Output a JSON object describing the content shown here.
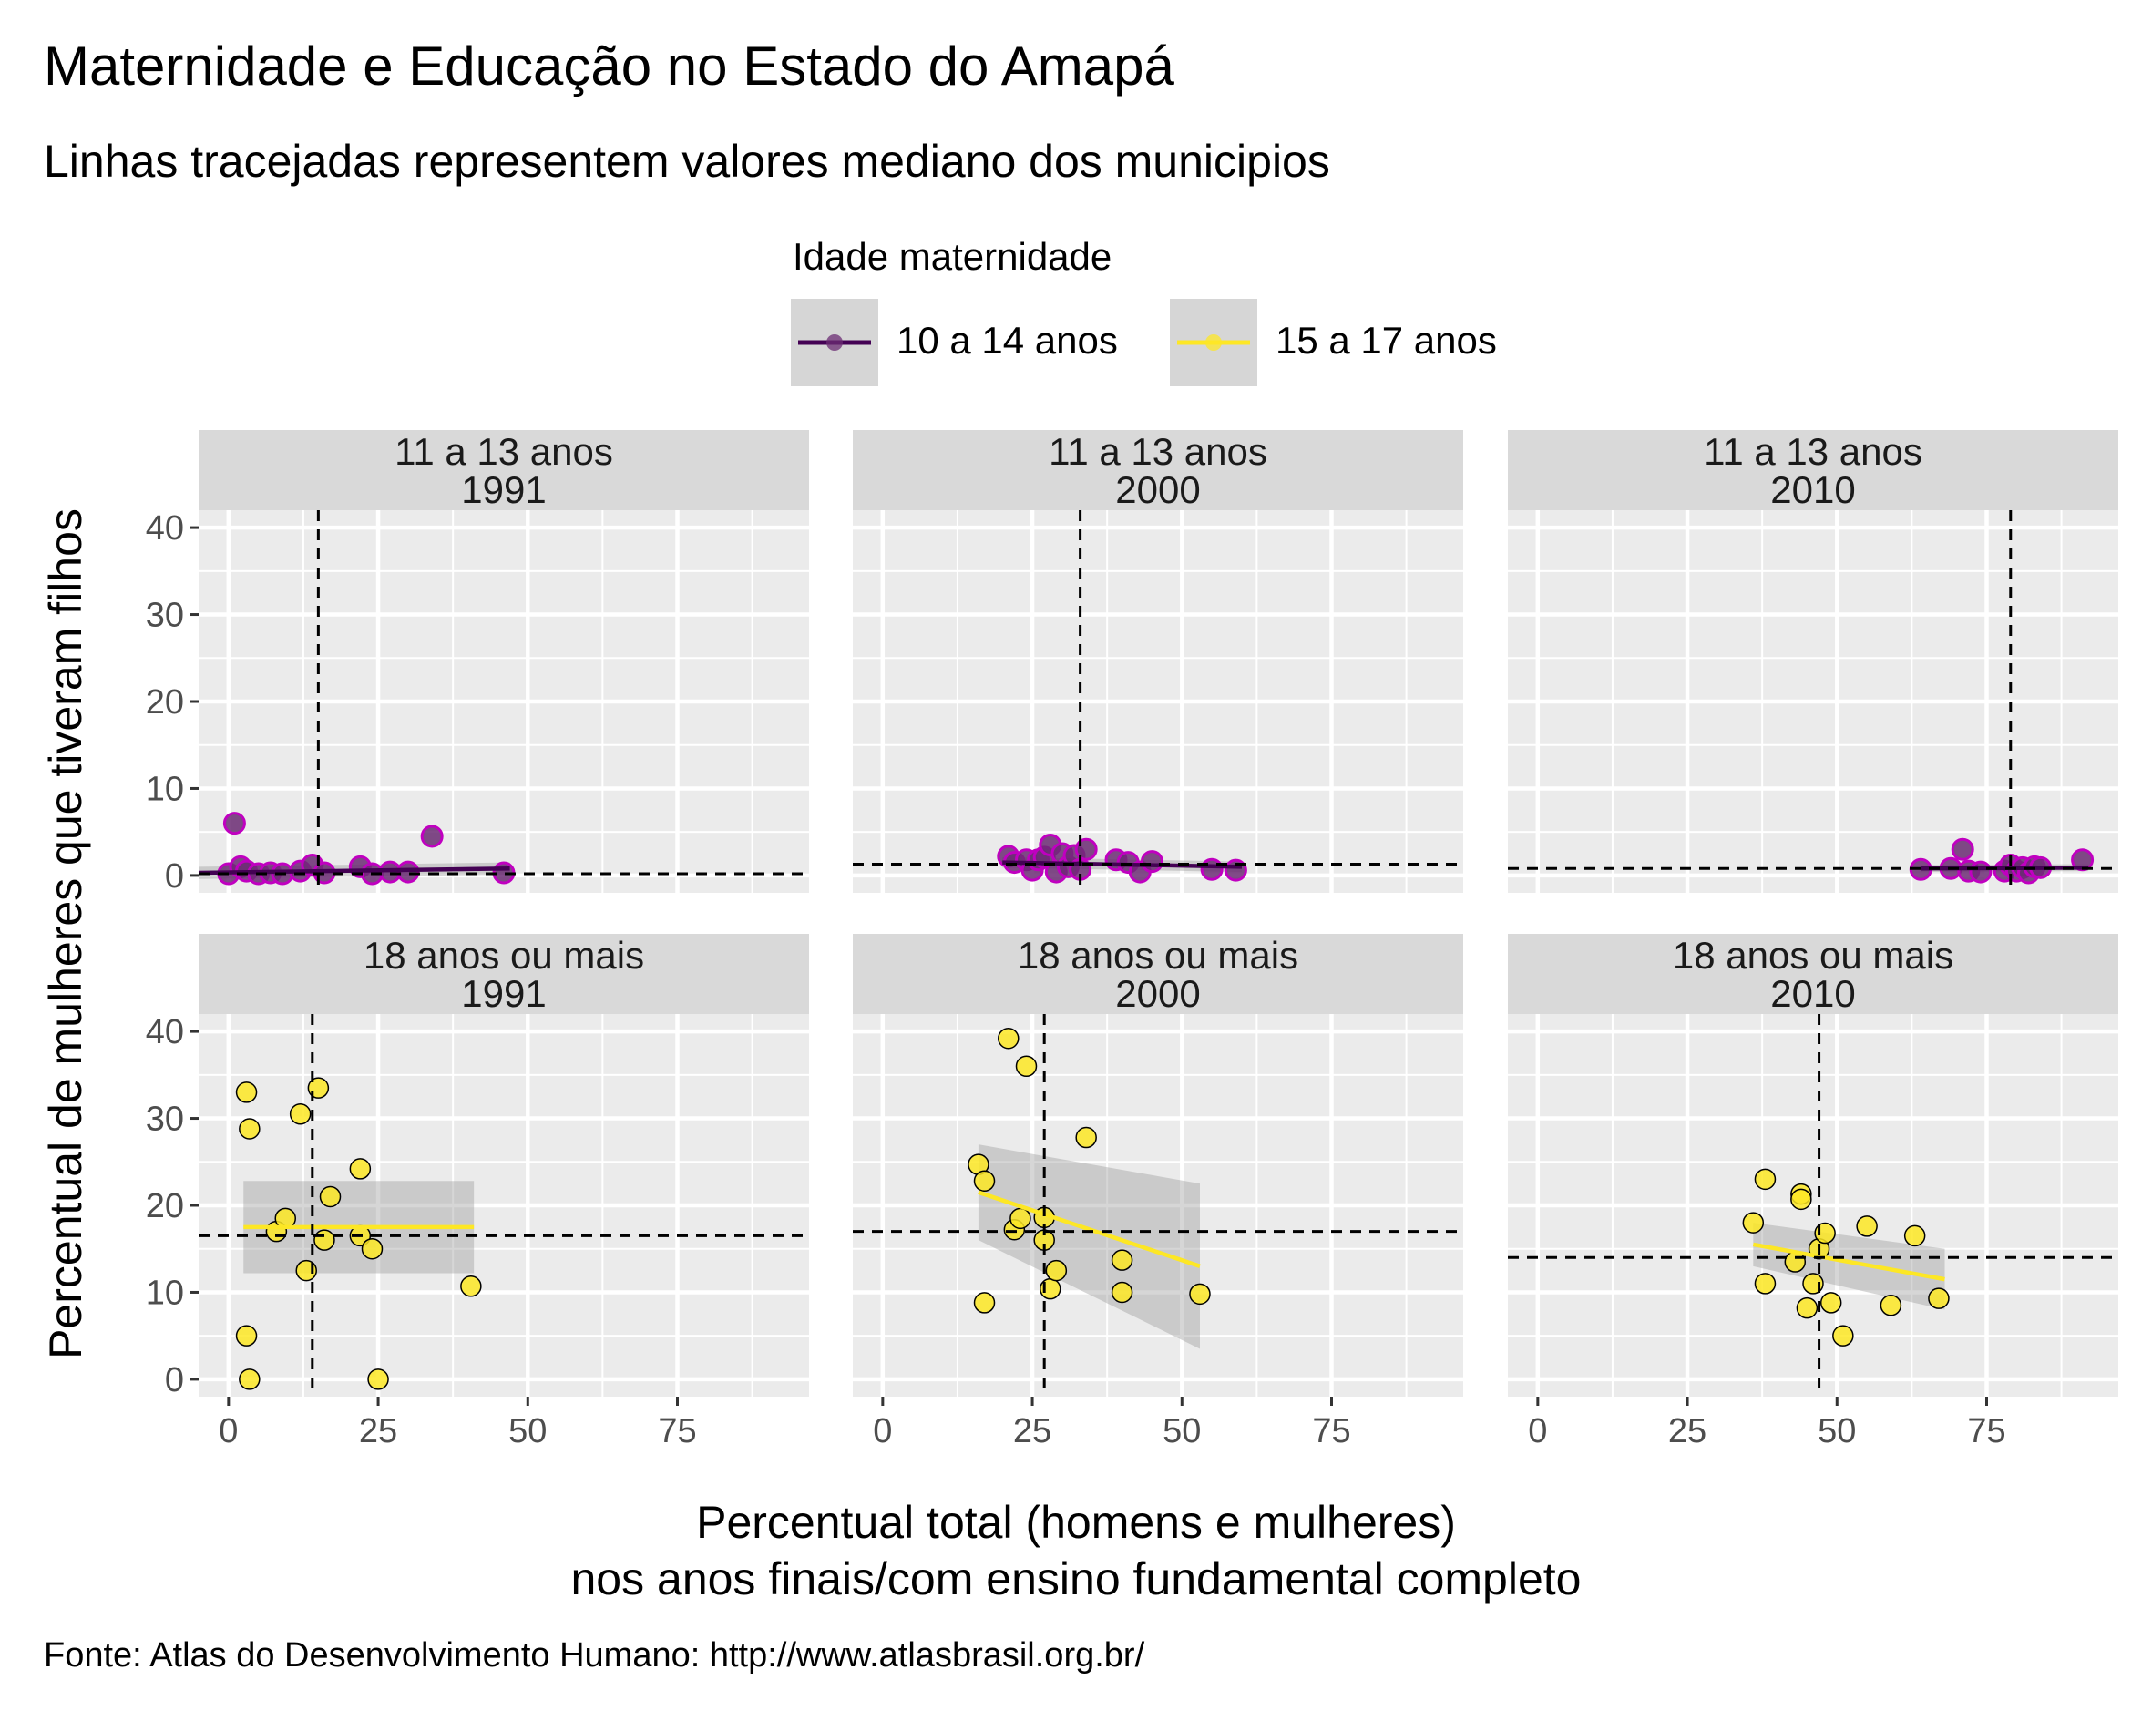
{
  "title": "Maternidade e Educação no Estado do Amapá",
  "subtitle": "Linhas tracejadas representem valores mediano dos municipios",
  "caption": "Fonte: Atlas do Desenvolvimento Humano: http://www.atlasbrasil.org.br/",
  "legend": {
    "title": "Idade maternidade",
    "items": [
      {
        "label": "10 a 14 anos",
        "color": "#440154",
        "fill": "#6b2c73",
        "outline": "#c000c0"
      },
      {
        "label": "15 a 17 anos",
        "color": "#fde725",
        "fill": "#fde725",
        "outline": "#000000"
      }
    ]
  },
  "chart_data": {
    "type": "scatter",
    "xlabel": "Percentual total (homens e mulheres)\nnos anos finais/com ensino fundamental completo",
    "ylabel": "Percentual de mulheres que tiveram filhos",
    "xlim": [
      -5,
      97
    ],
    "ylim": [
      -2,
      42
    ],
    "x_ticks": [
      0,
      25,
      50,
      75
    ],
    "y_ticks": [
      0,
      10,
      20,
      30,
      40
    ],
    "grid": true,
    "legend_position": "top",
    "facets": [
      {
        "strip": [
          "11 a 13 anos",
          "1991"
        ],
        "row": 0,
        "col": 0,
        "series": 0,
        "median_x": 15,
        "median_y": 0.2,
        "fit": {
          "x": [
            -5,
            47
          ],
          "y": [
            0.3,
            0.8
          ],
          "band": [
            0.7,
            0.7
          ]
        },
        "points": [
          [
            1,
            6
          ],
          [
            0,
            0.2
          ],
          [
            2,
            1
          ],
          [
            3,
            0.5
          ],
          [
            5,
            0.2
          ],
          [
            7,
            0.3
          ],
          [
            9,
            0.2
          ],
          [
            12,
            0.5
          ],
          [
            14,
            1.2
          ],
          [
            16,
            0.3
          ],
          [
            22,
            1
          ],
          [
            24,
            0.2
          ],
          [
            27,
            0.4
          ],
          [
            30,
            0.4
          ],
          [
            34,
            4.5
          ],
          [
            46,
            0.3
          ]
        ]
      },
      {
        "strip": [
          "11 a 13 anos",
          "2000"
        ],
        "row": 0,
        "col": 1,
        "series": 0,
        "median_x": 33,
        "median_y": 1.3,
        "fit": {
          "x": [
            20,
            60
          ],
          "y": [
            1.5,
            1
          ],
          "band": [
            0.6,
            0.6
          ]
        },
        "points": [
          [
            21,
            2.2
          ],
          [
            22,
            1.5
          ],
          [
            24,
            1.8
          ],
          [
            25,
            0.6
          ],
          [
            26,
            1.8
          ],
          [
            27,
            2.1
          ],
          [
            28,
            3.5
          ],
          [
            29,
            0.4
          ],
          [
            30,
            2.5
          ],
          [
            31,
            1
          ],
          [
            32,
            2.3
          ],
          [
            33,
            0.7
          ],
          [
            34,
            3
          ],
          [
            39,
            1.8
          ],
          [
            41,
            1.5
          ],
          [
            43,
            0.4
          ],
          [
            45,
            1.6
          ],
          [
            55,
            0.7
          ],
          [
            59,
            0.6
          ]
        ]
      },
      {
        "strip": [
          "11 a 13 anos",
          "2010"
        ],
        "row": 0,
        "col": 2,
        "series": 0,
        "median_x": 79,
        "median_y": 0.8,
        "fit": {
          "x": [
            64,
            92
          ],
          "y": [
            0.8,
            0.9
          ],
          "band": [
            0.4,
            0.4
          ]
        },
        "points": [
          [
            64,
            0.7
          ],
          [
            69,
            0.8
          ],
          [
            71,
            3
          ],
          [
            72,
            0.5
          ],
          [
            74,
            0.4
          ],
          [
            78,
            0.5
          ],
          [
            79,
            1.2
          ],
          [
            80,
            0.5
          ],
          [
            81,
            0.9
          ],
          [
            82,
            0.3
          ],
          [
            83,
            1
          ],
          [
            84,
            0.9
          ],
          [
            91,
            1.8
          ]
        ]
      },
      {
        "strip": [
          "18 anos ou mais",
          "1991"
        ],
        "row": 1,
        "col": 0,
        "series": 1,
        "median_x": 14,
        "median_y": 16.5,
        "fit": {
          "x": [
            2.5,
            41
          ],
          "y": [
            17.5,
            17.5
          ],
          "band": [
            5.3,
            5.3
          ]
        },
        "points": [
          [
            3,
            33
          ],
          [
            3.5,
            28.8
          ],
          [
            3,
            5
          ],
          [
            3.5,
            0
          ],
          [
            8,
            17
          ],
          [
            9.5,
            18.5
          ],
          [
            12,
            30.5
          ],
          [
            13,
            12.5
          ],
          [
            15,
            33.5
          ],
          [
            16,
            16
          ],
          [
            17,
            21
          ],
          [
            22,
            24.2
          ],
          [
            22,
            16.5
          ],
          [
            24,
            15
          ],
          [
            25,
            0
          ],
          [
            40.5,
            10.7
          ]
        ]
      },
      {
        "strip": [
          "18 anos ou mais",
          "2000"
        ],
        "row": 1,
        "col": 1,
        "series": 1,
        "median_x": 27,
        "median_y": 17,
        "fit": {
          "x": [
            16,
            53
          ],
          "y": [
            21.5,
            13
          ],
          "band": [
            5.5,
            9.5
          ]
        },
        "points": [
          [
            21,
            39.2
          ],
          [
            24,
            36
          ],
          [
            16,
            24.7
          ],
          [
            17,
            22.8
          ],
          [
            17,
            8.8
          ],
          [
            22,
            17.2
          ],
          [
            23,
            18.5
          ],
          [
            27,
            18.6
          ],
          [
            27,
            16
          ],
          [
            28,
            10.4
          ],
          [
            29,
            12.5
          ],
          [
            34,
            27.8
          ],
          [
            40,
            13.7
          ],
          [
            40,
            10
          ],
          [
            53,
            9.8
          ]
        ]
      },
      {
        "strip": [
          "18 anos ou mais",
          "2010"
        ],
        "row": 1,
        "col": 2,
        "series": 1,
        "median_x": 47,
        "median_y": 14,
        "fit": {
          "x": [
            36,
            68
          ],
          "y": [
            15.5,
            11.5
          ],
          "band": [
            2.5,
            3.5
          ]
        },
        "points": [
          [
            36,
            18
          ],
          [
            38,
            11
          ],
          [
            38,
            23
          ],
          [
            43,
            13.5
          ],
          [
            44,
            21.3
          ],
          [
            44,
            20.7
          ],
          [
            45,
            8.2
          ],
          [
            46,
            11
          ],
          [
            47,
            15
          ],
          [
            48,
            16.8
          ],
          [
            49,
            8.8
          ],
          [
            51,
            5
          ],
          [
            55,
            17.6
          ],
          [
            59,
            8.5
          ],
          [
            63,
            16.5
          ],
          [
            67,
            9.3
          ]
        ]
      }
    ]
  }
}
